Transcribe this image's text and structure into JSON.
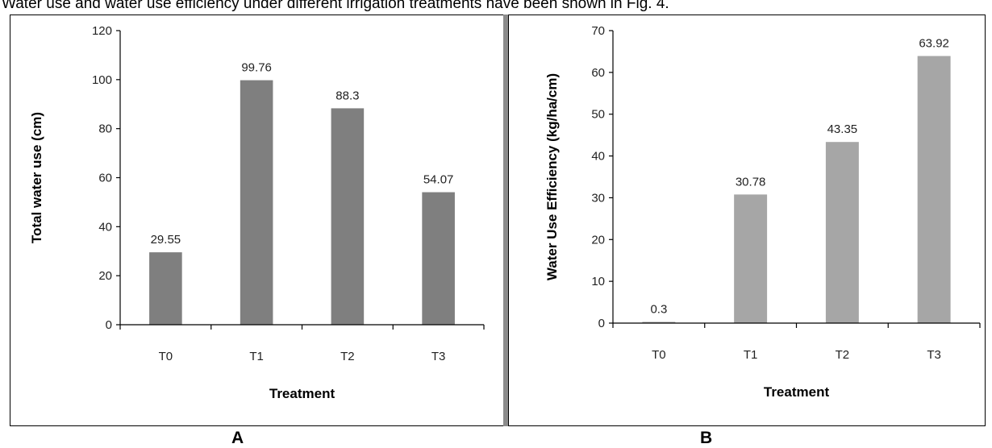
{
  "caption": "Water use and water use efficiency under different irrigation treatments have been shown in Fig. 4.",
  "panel_letters": [
    "A",
    "B"
  ],
  "chart_data": [
    {
      "type": "bar",
      "panel": "A",
      "categories": [
        "T0",
        "T1",
        "T2",
        "T3"
      ],
      "values": [
        29.55,
        99.76,
        88.3,
        54.07
      ],
      "value_labels": [
        "29.55",
        "99.76",
        "88.3",
        "54.07"
      ],
      "xlabel": "Treatment",
      "ylabel": "Total water use (cm)",
      "ylim": [
        0,
        120
      ],
      "yticks": [
        0,
        20,
        40,
        60,
        80,
        100,
        120
      ],
      "grid": false,
      "bar_color": "#7f7f7f"
    },
    {
      "type": "bar",
      "panel": "B",
      "categories": [
        "T0",
        "T1",
        "T2",
        "T3"
      ],
      "values": [
        0.3,
        30.78,
        43.35,
        63.92
      ],
      "value_labels": [
        "0.3",
        "30.78",
        "43.35",
        "63.92"
      ],
      "xlabel": "Treatment",
      "ylabel": "Water Use Efficiency (kg/ha/cm)",
      "ylim": [
        0,
        70
      ],
      "yticks": [
        0,
        10,
        20,
        30,
        40,
        50,
        60,
        70
      ],
      "grid": false,
      "bar_color": "#a6a6a6"
    }
  ]
}
